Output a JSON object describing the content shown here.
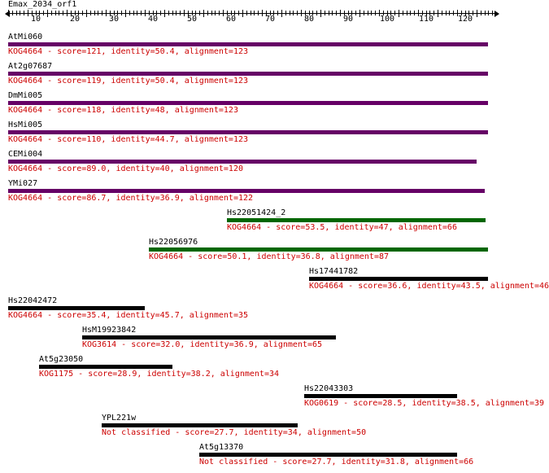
{
  "query": {
    "name": "Emax_2034_orf1"
  },
  "ruler": {
    "labels": [
      "10",
      "20",
      "30",
      "40",
      "50",
      "60",
      "70",
      "80",
      "90",
      "100",
      "110",
      "120"
    ]
  },
  "colors": {
    "purple": "#660066",
    "green": "#006600",
    "black": "#000000",
    "desc": "#cc0000"
  },
  "hits": [
    {
      "name": "AtMi060",
      "desc": "KOG4664 - score=121, identity=50.4, alignment=123",
      "color": "purple"
    },
    {
      "name": "At2g07687",
      "desc": "KOG4664 - score=119, identity=50.4, alignment=123",
      "color": "purple"
    },
    {
      "name": "DmMi005",
      "desc": "KOG4664 - score=118, identity=48, alignment=123",
      "color": "purple"
    },
    {
      "name": "HsMi005",
      "desc": "KOG4664 - score=110, identity=44.7, alignment=123",
      "color": "purple"
    },
    {
      "name": "CEMi004",
      "desc": "KOG4664 - score=89.0, identity=40, alignment=120",
      "color": "purple"
    },
    {
      "name": "YMi027",
      "desc": "KOG4664 - score=86.7, identity=36.9, alignment=122",
      "color": "purple"
    },
    {
      "name": "Hs22051424_2",
      "desc": "KOG4664 - score=53.5, identity=47, alignment=66",
      "color": "green"
    },
    {
      "name": "Hs22056976",
      "desc": "KOG4664 - score=50.1, identity=36.8, alignment=87",
      "color": "green"
    },
    {
      "name": "Hs17441782",
      "desc": "KOG4664 - score=36.6, identity=43.5, alignment=46",
      "color": "black"
    },
    {
      "name": "Hs22042472",
      "desc": "KOG4664 - score=35.4, identity=45.7, alignment=35",
      "color": "black"
    },
    {
      "name": "HsM19923842",
      "desc": "KOG3614 - score=32.0, identity=36.9, alignment=65",
      "color": "black"
    },
    {
      "name": "At5g23050",
      "desc": "KOG1175 - score=28.9, identity=38.2, alignment=34",
      "color": "black"
    },
    {
      "name": "Hs22043303",
      "desc": "KOG0619 - score=28.5, identity=38.5, alignment=39",
      "color": "black"
    },
    {
      "name": "YPL221w",
      "desc": "Not classified - score=27.7, identity=34, alignment=50",
      "color": "black"
    },
    {
      "name": "At5g13370",
      "desc": "Not classified - score=27.7, identity=31.8, alignment=66",
      "color": "black"
    }
  ]
}
